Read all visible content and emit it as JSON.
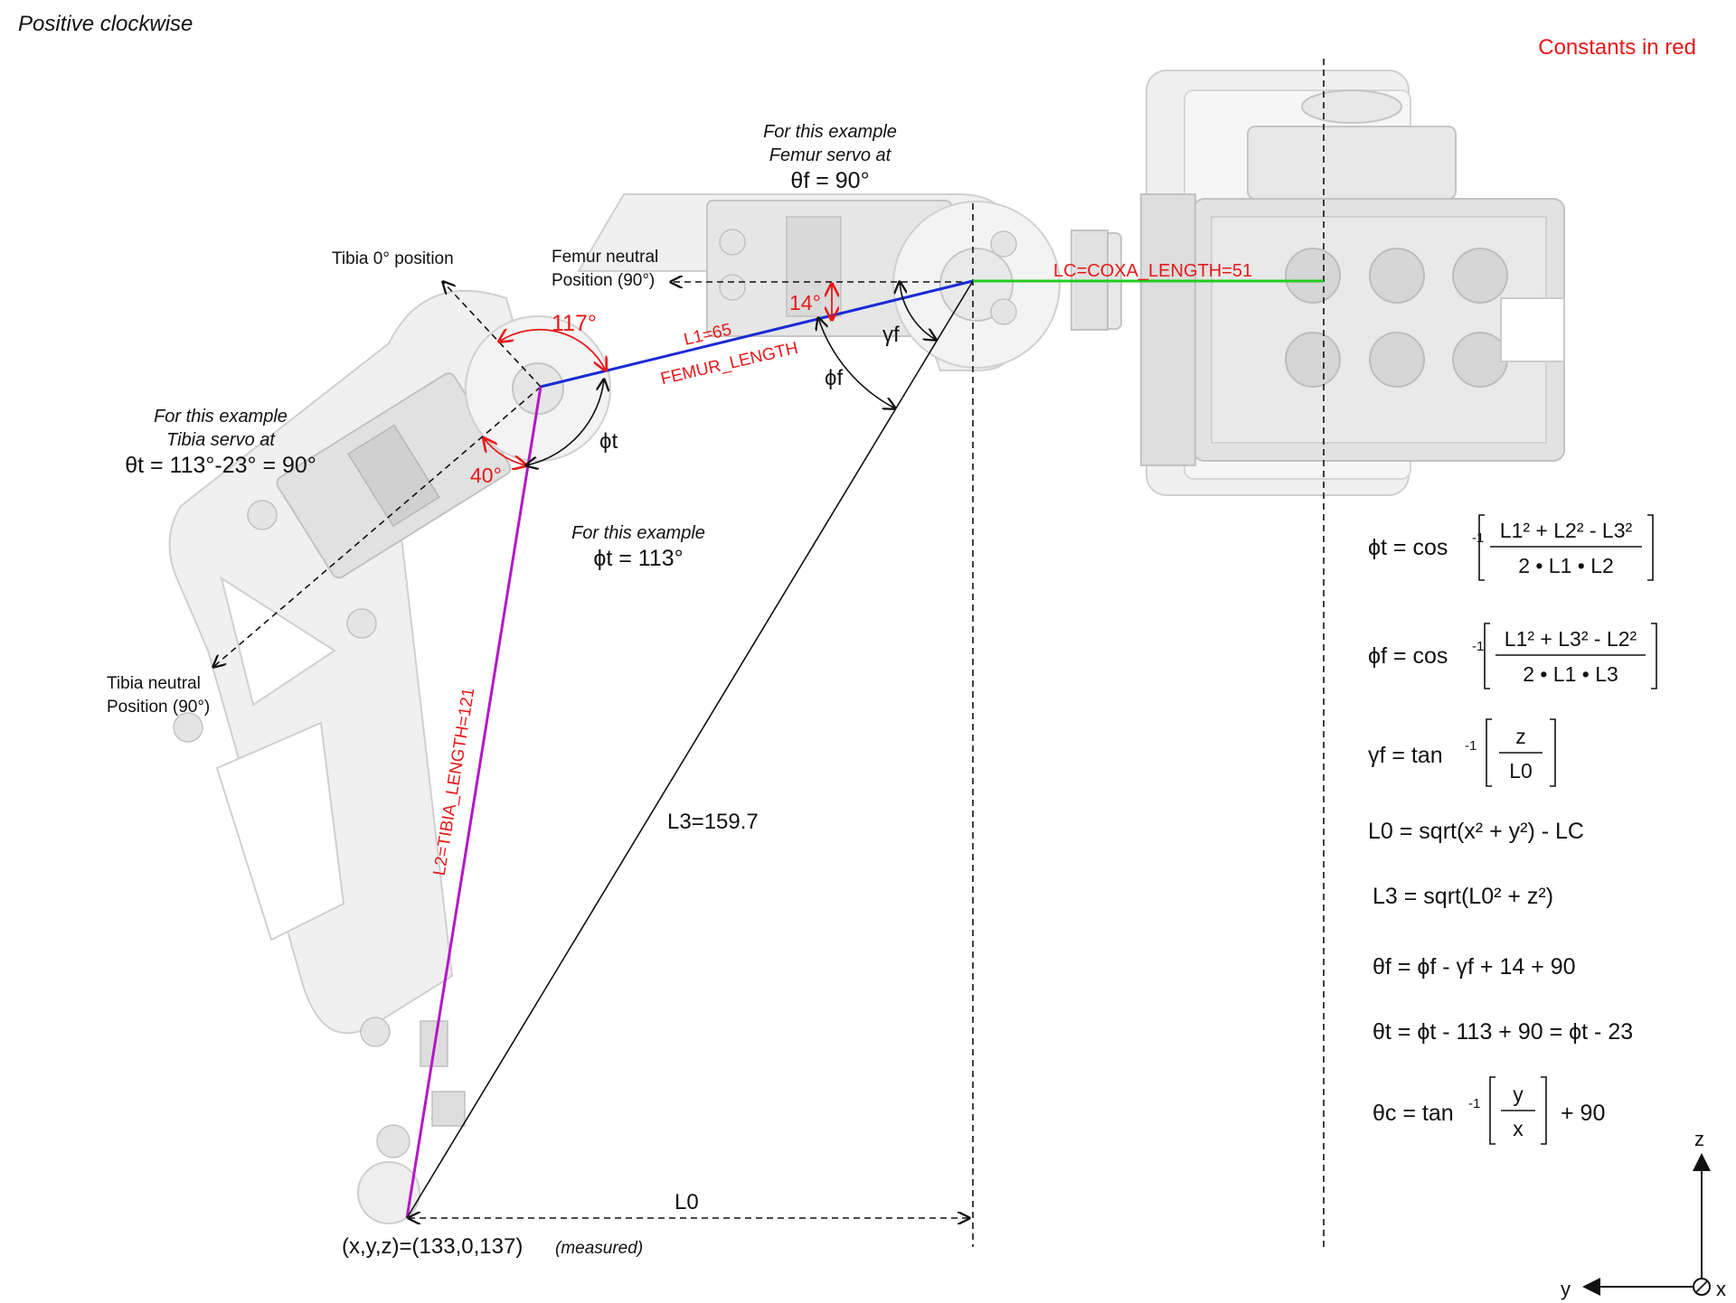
{
  "header": {
    "positive_note": "Positive clockwise",
    "constants_note": "Constants in red"
  },
  "legend_colors": {
    "constant": "#e81818",
    "femur": "#1a2bd6",
    "tibia": "#b417c8",
    "coxa": "#22cc22",
    "construction": "#111111"
  },
  "annotations": {
    "femur_example_line1": "For this example",
    "femur_example_line2": "Femur servo at",
    "femur_example_value": "θf = 90°",
    "tibia_zero": "Tibia 0° position",
    "femur_neutral_line1": "Femur neutral",
    "femur_neutral_line2": "Position (90°)",
    "tibia_example_line1": "For this example",
    "tibia_example_line2": "Tibia servo at",
    "tibia_example_value": "θt = 113°-23° = 90°",
    "phit_example_line1": "For this example",
    "phit_example_value": "ϕt = 113°",
    "tibia_neutral_line1": "Tibia neutral",
    "tibia_neutral_line2": "Position (90°)",
    "coxa_length": "LC=COXA_LENGTH=51",
    "femur_l1": "L1=65",
    "femur_name": "FEMUR_LENGTH",
    "tibia_length": "L2=TIBIA_LENGTH=121",
    "l3": "L3=159.7",
    "l0": "L0",
    "foot_point": "(x,y,z)=(133,0,137)",
    "foot_measured": "(measured)",
    "angle_117": "117°",
    "angle_14": "14°",
    "angle_40": "40°",
    "phi_t": "ϕt",
    "phi_f": "ϕf",
    "gamma_f": "γf"
  },
  "formulas": {
    "phit": {
      "lhs": "ϕt = cos",
      "sup": "-1",
      "num": "L1² + L2² - L3²",
      "den": "2 • L1 • L2"
    },
    "phif": {
      "lhs": "ϕf = cos",
      "sup": "-1",
      "num": "L1² + L3² - L2²",
      "den": "2 • L1 • L3"
    },
    "gammaf": {
      "lhs": "γf = tan",
      "sup": "-1",
      "num": "z",
      "den": "L0"
    },
    "l0": "L0 = sqrt(x² + y²) - LC",
    "l3": "L3 = sqrt(L0² + z²)",
    "thetaf": "θf = ϕf - γf + 14 + 90",
    "thetat": "θt = ϕt - 113 + 90 = ϕt - 23",
    "thetac": {
      "lhs": "θc = tan",
      "sup": "-1",
      "num": "y",
      "den": "x",
      "tail": "+ 90"
    }
  },
  "axes": {
    "z": "z",
    "y": "y",
    "x": "x"
  }
}
